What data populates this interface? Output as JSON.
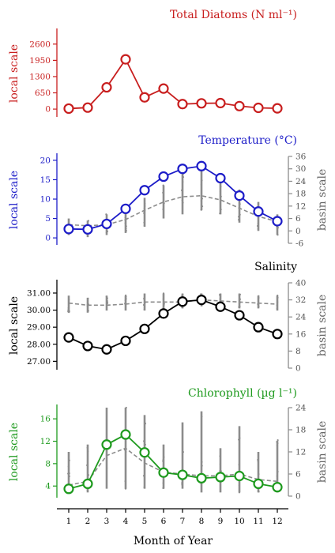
{
  "colors": {
    "diatoms": "#c81e1e",
    "temperature": "#1c1cc8",
    "salinity": "#000000",
    "chlorophyll": "#1e9a1e",
    "basin": "#8c8c8c"
  },
  "x_axis": {
    "label": "Month of Year",
    "ticks": [
      "1",
      "2",
      "3",
      "4",
      "5",
      "6",
      "7",
      "8",
      "9",
      "10",
      "11",
      "12"
    ]
  },
  "chart_data": [
    {
      "type": "line",
      "title": "Total Diatoms (N ml⁻¹)",
      "ylabel": "local scale",
      "yticks": [
        "0",
        "650",
        "1300",
        "1950",
        "2600"
      ],
      "ylim": [
        -250,
        3100
      ],
      "x": [
        1,
        2,
        3,
        4,
        5,
        6,
        7,
        8,
        9,
        10,
        11,
        12
      ],
      "series": [
        {
          "values": [
            20,
            60,
            870,
            1990,
            470,
            820,
            200,
            230,
            240,
            120,
            50,
            30
          ]
        }
      ]
    },
    {
      "type": "line",
      "title": "Temperature (°C)",
      "ylabel": "local scale",
      "ylabel2": "basin scale",
      "yticks": [
        "0",
        "5",
        "10",
        "15",
        "20"
      ],
      "yticks2": [
        "-6",
        "0",
        "6",
        "12",
        "18",
        "24",
        "30",
        "36"
      ],
      "ylim": [
        -1.4,
        21
      ],
      "ylim2": [
        -6,
        36
      ],
      "x": [
        1,
        2,
        3,
        4,
        5,
        6,
        7,
        8,
        9,
        10,
        11,
        12
      ],
      "series": [
        {
          "values": [
            2.3,
            2.2,
            3.6,
            7.5,
            12.3,
            15.8,
            17.8,
            18.5,
            15.4,
            10.9,
            6.8,
            4.3
          ]
        },
        {
          "axis": "basin",
          "style": "dashed",
          "values": [
            3,
            2.5,
            3,
            5.5,
            10,
            14,
            16.5,
            17,
            15,
            11,
            7,
            4.5
          ]
        }
      ],
      "basin_ranges": [
        [
          -2,
          6
        ],
        [
          -3,
          5
        ],
        [
          -2,
          8
        ],
        [
          -1,
          12
        ],
        [
          2,
          16
        ],
        [
          6,
          22
        ],
        [
          8,
          28
        ],
        [
          10,
          30
        ],
        [
          8,
          26
        ],
        [
          4,
          20
        ],
        [
          0,
          14
        ],
        [
          -2,
          8
        ]
      ]
    },
    {
      "type": "line",
      "title": "Salinity",
      "ylabel": "local scale",
      "ylabel2": "basin scale",
      "yticks": [
        "27.00",
        "28.00",
        "29.00",
        "30.00",
        "31.00"
      ],
      "yticks2": [
        "0",
        "8",
        "16",
        "24",
        "32",
        "40"
      ],
      "ylim": [
        26.6,
        31.6
      ],
      "ylim2": [
        0,
        40
      ],
      "x": [
        1,
        2,
        3,
        4,
        5,
        6,
        7,
        8,
        9,
        10,
        11,
        12
      ],
      "series": [
        {
          "values": [
            28.4,
            27.9,
            27.7,
            28.2,
            28.9,
            29.8,
            30.5,
            30.6,
            30.2,
            29.7,
            29.0,
            28.6
          ]
        },
        {
          "axis": "basin",
          "style": "dashed",
          "values": [
            30.5,
            29.5,
            29.5,
            30,
            31,
            31,
            31,
            32,
            31.5,
            31,
            30.5,
            30
          ]
        }
      ],
      "basin_ranges": [
        [
          26,
          34
        ],
        [
          26,
          33
        ],
        [
          27,
          34
        ],
        [
          27,
          34
        ],
        [
          27,
          35
        ],
        [
          28,
          35
        ],
        [
          28,
          35
        ],
        [
          29,
          35
        ],
        [
          29,
          35
        ],
        [
          28,
          35
        ],
        [
          28,
          34
        ],
        [
          27,
          34
        ]
      ]
    },
    {
      "type": "line",
      "title": "Chlorophyll (µg l⁻¹)",
      "ylabel": "local scale",
      "ylabel2": "basin scale",
      "yticks": [
        "4",
        "8",
        "12",
        "16"
      ],
      "yticks2": [
        "0",
        "6",
        "12",
        "18",
        "24"
      ],
      "ylim": [
        2.2,
        18
      ],
      "ylim2": [
        0,
        24
      ],
      "x": [
        1,
        2,
        3,
        4,
        5,
        6,
        7,
        8,
        9,
        10,
        11,
        12
      ],
      "series": [
        {
          "values": [
            3.5,
            4.4,
            11.4,
            13.2,
            10,
            6.4,
            6,
            5.4,
            5.6,
            5.8,
            4.4,
            3.8
          ]
        },
        {
          "axis": "basin",
          "style": "dashed",
          "values": [
            3,
            4,
            11,
            13,
            9,
            6.5,
            6,
            5.5,
            5.5,
            6,
            4.5,
            4
          ]
        }
      ],
      "basin_ranges": [
        [
          1,
          12
        ],
        [
          1,
          14
        ],
        [
          2,
          24
        ],
        [
          2,
          24
        ],
        [
          2,
          22
        ],
        [
          2,
          14
        ],
        [
          2,
          20
        ],
        [
          1,
          23
        ],
        [
          1,
          13
        ],
        [
          1,
          19
        ],
        [
          1,
          12
        ],
        [
          1,
          15
        ]
      ]
    }
  ]
}
